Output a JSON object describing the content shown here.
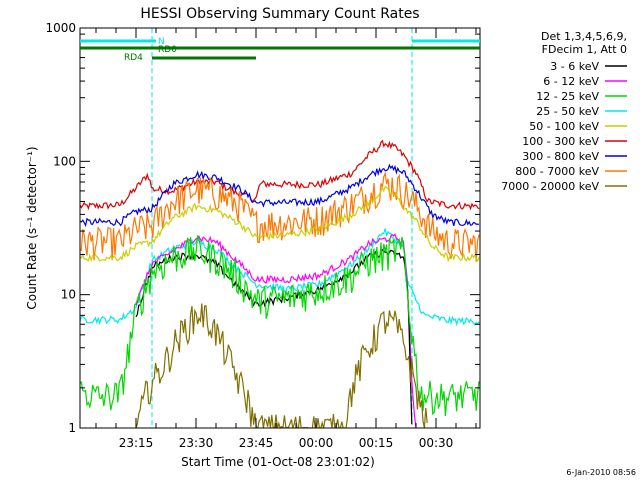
{
  "chart_data": {
    "type": "line",
    "title": "HESSI Observing Summary Count Rates",
    "xlabel": "Start Time (01-Oct-08 23:01:02)",
    "ylabel": "Count Rate (s⁻¹ detector⁻¹)",
    "yscale": "log",
    "ylim": [
      1,
      1000
    ],
    "xlim_minutes": [
      0,
      100
    ],
    "y_tick_labels": [
      "1",
      "10",
      "100",
      "1000"
    ],
    "y_tick_values": [
      1,
      10,
      100,
      1000
    ],
    "x_tick_labels": [
      "23:15",
      "23:30",
      "23:45",
      "00:00",
      "00:15",
      "00:30"
    ],
    "x_tick_minutes": [
      14,
      29,
      44,
      59,
      74,
      89
    ],
    "timestamp": "6-Jan-2010 08:56",
    "legend": {
      "header": [
        "Det 1,3,4,5,6,9,",
        "FDecim 1, Att 0"
      ],
      "entries": [
        {
          "label": "3 - 6 keV",
          "color": "#000000"
        },
        {
          "label": "6 - 12 keV",
          "color": "#ff00ff"
        },
        {
          "label": "12 - 25 keV",
          "color": "#00d800"
        },
        {
          "label": "25 - 50 keV",
          "color": "#00e8e8"
        },
        {
          "label": "50 - 100 keV",
          "color": "#cccc00"
        },
        {
          "label": "100 - 300 keV",
          "color": "#dd0000"
        },
        {
          "label": "300 - 800 keV",
          "color": "#0000dd"
        },
        {
          "label": "800 - 7000 keV",
          "color": "#ff7700"
        },
        {
          "label": "7000 - 20000 keV",
          "color": "#807000"
        }
      ]
    },
    "flags": [
      {
        "label": "N",
        "color": "#00e8e8",
        "segments": [
          [
            0,
            19
          ],
          [
            83,
            100
          ]
        ]
      },
      {
        "label": "RD0",
        "color": "#007700",
        "segments": [
          [
            0,
            100
          ]
        ]
      },
      {
        "label": "RD4",
        "color": "#007700",
        "segments": [
          [
            18,
            44
          ]
        ]
      }
    ],
    "night_boundaries_minutes": [
      18,
      83
    ],
    "series": [
      {
        "name": "100 - 300 keV",
        "color": "#dd0000",
        "points": [
          [
            0,
            46
          ],
          [
            10,
            47
          ],
          [
            14,
            63
          ],
          [
            17,
            80
          ],
          [
            18,
            62
          ],
          [
            23,
            60
          ],
          [
            29,
            70
          ],
          [
            34,
            70
          ],
          [
            39,
            58
          ],
          [
            44,
            52
          ],
          [
            45,
            68
          ],
          [
            52,
            67
          ],
          [
            60,
            67
          ],
          [
            68,
            82
          ],
          [
            72,
            110
          ],
          [
            76,
            138
          ],
          [
            79,
            125
          ],
          [
            81,
            110
          ],
          [
            84,
            82
          ],
          [
            87,
            50
          ],
          [
            92,
            47
          ],
          [
            100,
            46
          ]
        ]
      },
      {
        "name": "300 - 800 keV",
        "color": "#0000dd",
        "points": [
          [
            0,
            35
          ],
          [
            10,
            35
          ],
          [
            14,
            42
          ],
          [
            18,
            44
          ],
          [
            23,
            67
          ],
          [
            29,
            80
          ],
          [
            34,
            76
          ],
          [
            40,
            62
          ],
          [
            44,
            49
          ],
          [
            52,
            49
          ],
          [
            60,
            50
          ],
          [
            68,
            64
          ],
          [
            72,
            78
          ],
          [
            76,
            90
          ],
          [
            79,
            87
          ],
          [
            81,
            82
          ],
          [
            84,
            62
          ],
          [
            88,
            40
          ],
          [
            92,
            35
          ],
          [
            100,
            34
          ]
        ]
      },
      {
        "name": "800 - 7000 keV",
        "color": "#ff7700",
        "points": [
          [
            0,
            25
          ],
          [
            10,
            25
          ],
          [
            14,
            31
          ],
          [
            18,
            33
          ],
          [
            23,
            50
          ],
          [
            29,
            62
          ],
          [
            34,
            58
          ],
          [
            40,
            47
          ],
          [
            44,
            34
          ],
          [
            52,
            35
          ],
          [
            60,
            37
          ],
          [
            68,
            48
          ],
          [
            72,
            57
          ],
          [
            76,
            68
          ],
          [
            79,
            66
          ],
          [
            81,
            60
          ],
          [
            84,
            47
          ],
          [
            88,
            30
          ],
          [
            92,
            25
          ],
          [
            100,
            24
          ]
        ]
      },
      {
        "name": "50 - 100 keV",
        "color": "#cccc00",
        "points": [
          [
            0,
            19
          ],
          [
            10,
            19
          ],
          [
            14,
            23
          ],
          [
            18,
            25
          ],
          [
            23,
            37
          ],
          [
            29,
            46
          ],
          [
            34,
            43
          ],
          [
            40,
            34
          ],
          [
            44,
            27
          ],
          [
            52,
            28
          ],
          [
            60,
            31
          ],
          [
            68,
            40
          ],
          [
            72,
            48
          ],
          [
            76,
            62
          ],
          [
            79,
            55
          ],
          [
            81,
            45
          ],
          [
            84,
            36
          ],
          [
            88,
            23
          ],
          [
            92,
            19
          ],
          [
            100,
            19
          ]
        ]
      },
      {
        "name": "25 - 50 keV",
        "color": "#00e8e8",
        "points": [
          [
            0,
            6.5
          ],
          [
            10,
            6.5
          ],
          [
            14,
            8
          ],
          [
            18,
            18
          ],
          [
            23,
            22
          ],
          [
            29,
            25
          ],
          [
            34,
            22
          ],
          [
            40,
            15
          ],
          [
            44,
            12
          ],
          [
            52,
            11
          ],
          [
            60,
            12
          ],
          [
            68,
            17
          ],
          [
            72,
            22
          ],
          [
            76,
            30
          ],
          [
            79,
            26
          ],
          [
            81,
            22
          ],
          [
            82,
            12
          ],
          [
            86,
            7
          ],
          [
            92,
            6.4
          ],
          [
            100,
            6.3
          ]
        ]
      },
      {
        "name": "6 - 12 keV",
        "color": "#ff00ff",
        "points": [
          [
            14,
            8.5
          ],
          [
            18,
            17
          ],
          [
            23,
            21
          ],
          [
            29,
            27
          ],
          [
            34,
            25
          ],
          [
            40,
            17
          ],
          [
            44,
            13
          ],
          [
            52,
            13
          ],
          [
            60,
            14
          ],
          [
            68,
            19
          ],
          [
            72,
            24
          ],
          [
            76,
            26
          ],
          [
            79,
            27
          ],
          [
            81,
            24
          ],
          [
            82,
            10
          ],
          [
            83,
            2
          ],
          [
            84,
            1
          ]
        ]
      },
      {
        "name": "3 - 6 keV",
        "color": "#000000",
        "points": [
          [
            14,
            7
          ],
          [
            18,
            16
          ],
          [
            23,
            19
          ],
          [
            29,
            20
          ],
          [
            34,
            17
          ],
          [
            40,
            11
          ],
          [
            44,
            8.5
          ],
          [
            52,
            9.5
          ],
          [
            60,
            11
          ],
          [
            68,
            15
          ],
          [
            72,
            19
          ],
          [
            76,
            21
          ],
          [
            79,
            20
          ],
          [
            81,
            19
          ],
          [
            82,
            10
          ],
          [
            83,
            1
          ]
        ]
      },
      {
        "name": "12 - 25 keV",
        "color": "#00d800",
        "points": [
          [
            0,
            1.9
          ],
          [
            5,
            1.7
          ],
          [
            10,
            1.8
          ],
          [
            14,
            7.5
          ],
          [
            18,
            15
          ],
          [
            23,
            19
          ],
          [
            29,
            22
          ],
          [
            34,
            19
          ],
          [
            40,
            13
          ],
          [
            44,
            9
          ],
          [
            52,
            9.5
          ],
          [
            60,
            11
          ],
          [
            68,
            14
          ],
          [
            72,
            18
          ],
          [
            76,
            20
          ],
          [
            79,
            22
          ],
          [
            81,
            21
          ],
          [
            82,
            9
          ],
          [
            85,
            1.8
          ],
          [
            92,
            1.7
          ],
          [
            100,
            1.8
          ]
        ]
      },
      {
        "name": "7000 - 20000 keV",
        "color": "#807000",
        "points": [
          [
            14,
            1
          ],
          [
            17,
            2
          ],
          [
            21,
            3
          ],
          [
            24,
            4.5
          ],
          [
            27,
            6
          ],
          [
            30,
            7.5
          ],
          [
            33,
            6
          ],
          [
            36,
            4
          ],
          [
            39,
            2.5
          ],
          [
            42,
            1.6
          ],
          [
            44,
            1
          ],
          [
            66,
            1
          ],
          [
            68,
            2
          ],
          [
            71,
            3.5
          ],
          [
            74,
            5
          ],
          [
            76,
            6.5
          ],
          [
            79,
            6
          ],
          [
            82,
            3.5
          ],
          [
            85,
            1.5
          ],
          [
            87,
            1
          ]
        ]
      }
    ]
  }
}
